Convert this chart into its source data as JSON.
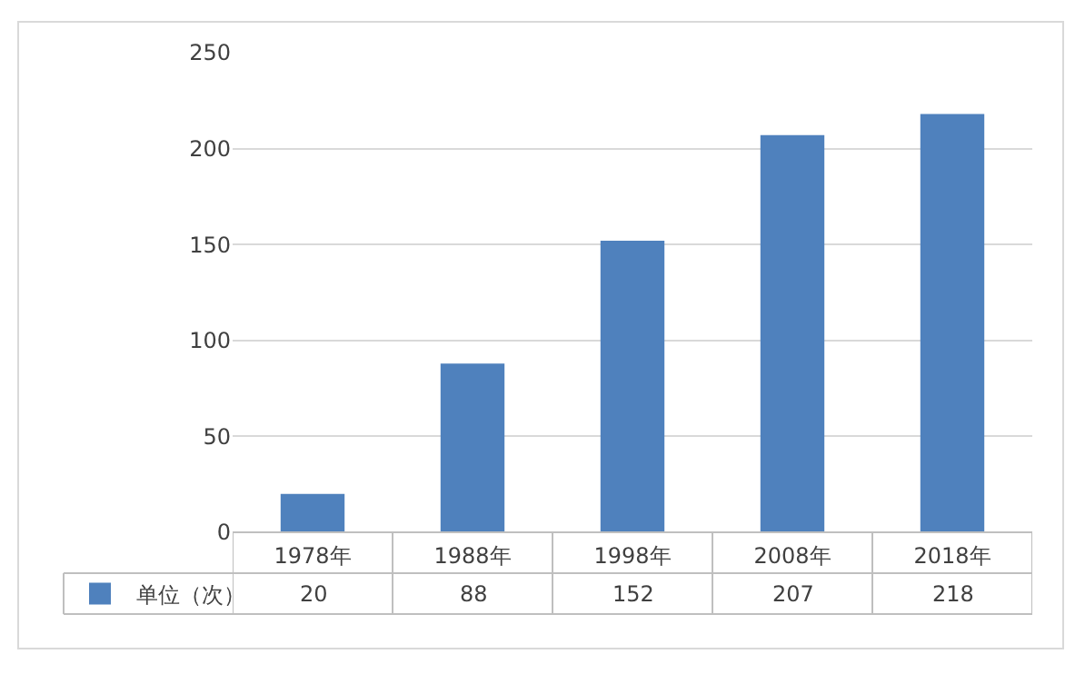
{
  "chart_data": {
    "type": "bar",
    "categories": [
      "1978年",
      "1988年",
      "1998年",
      "2008年",
      "2018年"
    ],
    "series": [
      {
        "name": "单位（次）",
        "color": "#4f81bd",
        "values": [
          20,
          88,
          152,
          207,
          218
        ]
      }
    ],
    "ylim": [
      0,
      250
    ],
    "yticks": [
      0,
      50,
      100,
      150,
      200,
      250
    ],
    "grid": "y",
    "legend": "bottom left",
    "data_labels": true
  }
}
